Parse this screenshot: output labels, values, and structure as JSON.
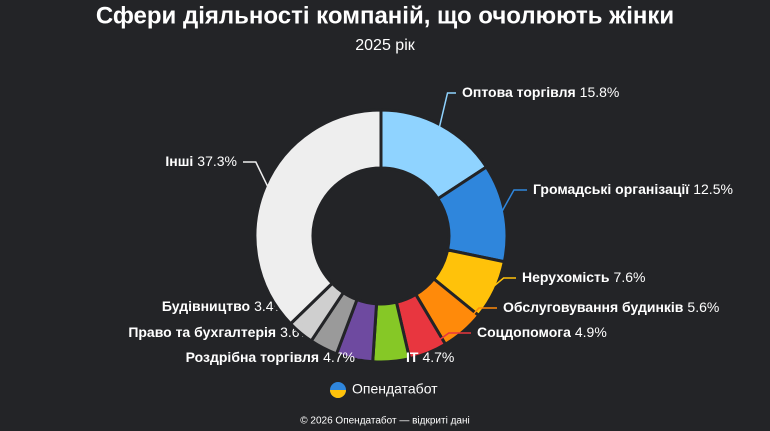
{
  "chart_data": {
    "type": "donut",
    "title": "Сфери діяльності компаній, що очолюють жінки",
    "subtitle": "2025 рік",
    "categories": [
      "Оптова торгівля",
      "Громадські організації",
      "Нерухомість",
      "Обслуговування будинків",
      "Соцдопомога",
      "IT",
      "Роздрібна торгівля",
      "Право та бухгалтерія",
      "Будівництво",
      "Інші"
    ],
    "values": [
      15.8,
      12.5,
      7.6,
      5.6,
      4.9,
      4.7,
      4.7,
      3.6,
      3.4,
      37.3
    ],
    "value_labels": [
      "15.8%",
      "12.5%",
      "7.6%",
      "5.6%",
      "4.9%",
      "4.7%",
      "4.7%",
      "3.6%",
      "3.4%",
      "37.3%"
    ],
    "colors": [
      "#8fd3ff",
      "#2f86dc",
      "#ffc20a",
      "#ff8a0a",
      "#e8363f",
      "#86c826",
      "#6e4aa0",
      "#9a9a9a",
      "#cfcfcf",
      "#eeeeee"
    ],
    "brand": "Опендатабот",
    "footer": "© 2026 Опендатабот — відкриті дані"
  }
}
